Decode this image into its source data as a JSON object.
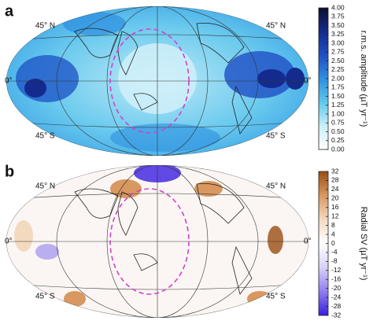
{
  "panels": [
    {
      "panel_label": "a",
      "lat_labels": {
        "north": "45° N",
        "equator": "0°",
        "south": "45° S"
      },
      "colorbar": {
        "label": "r.m.s. amplitude (µT yr⁻¹)",
        "lim": [
          0,
          4
        ],
        "colormap": [
          "#ffffff",
          "#c9eef8",
          "#5fc8ec",
          "#2d8fe0",
          "#1f4fc4",
          "#142a8c",
          "#0b0f2e"
        ],
        "ticks": [
          {
            "value": 0,
            "label": "0.00"
          },
          {
            "value": 0.25,
            "label": "0.25"
          },
          {
            "value": 0.5,
            "label": "0.50"
          },
          {
            "value": 0.75,
            "label": "0.75"
          },
          {
            "value": 1,
            "label": "1.00"
          },
          {
            "value": 1.25,
            "label": "1.25"
          },
          {
            "value": 1.5,
            "label": "1.50"
          },
          {
            "value": 1.75,
            "label": "1.75"
          },
          {
            "value": 2,
            "label": "2.00"
          },
          {
            "value": 2.25,
            "label": "2.25"
          },
          {
            "value": 2.5,
            "label": "2.50"
          },
          {
            "value": 2.75,
            "label": "2.75"
          },
          {
            "value": 3,
            "label": "3.00"
          },
          {
            "value": 3.25,
            "label": "3.25"
          },
          {
            "value": 3.5,
            "label": "3.50"
          },
          {
            "value": 3.75,
            "label": "3.75"
          },
          {
            "value": 4,
            "label": "4.00"
          }
        ]
      }
    },
    {
      "panel_label": "b",
      "lat_labels": {
        "north": "45° N",
        "equator": "0°",
        "south": "45° S"
      },
      "colorbar": {
        "label": "Radial SV (µT yr⁻¹)",
        "lim": [
          -32,
          32
        ],
        "colormap": [
          "#3a1ee0",
          "#8f7ef0",
          "#d9d2f8",
          "#ffffff",
          "#f3d9c0",
          "#d89860",
          "#9a4e12"
        ],
        "ticks": [
          -32,
          -28,
          -24,
          -20,
          -16,
          -12,
          -8,
          -4,
          0,
          4,
          8,
          12,
          16,
          20,
          24,
          28,
          32
        ]
      }
    }
  ]
}
